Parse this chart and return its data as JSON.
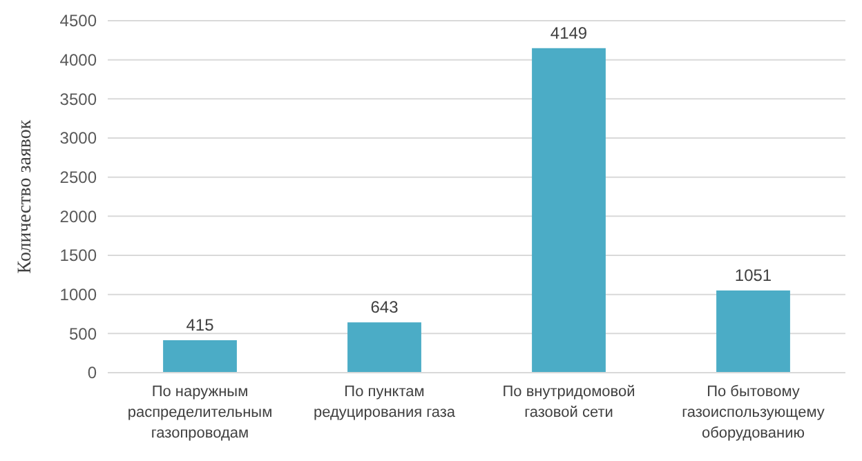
{
  "chart_data": {
    "type": "bar",
    "ylabel": "Количество заявок",
    "categories": [
      "По наружным распределительным газопроводам",
      "По пунктам редуцирования газа",
      "По внутридомовой газовой сети",
      "По бытовому газоиспользующему оборудованию"
    ],
    "values": [
      415,
      643,
      4149,
      1051
    ],
    "color": "#4bacc6",
    "data_labels": true,
    "ylim": [
      0,
      4500
    ],
    "yticks": [
      0,
      500,
      1000,
      1500,
      2000,
      2500,
      3000,
      3500,
      4000,
      4500
    ],
    "grid": "y"
  }
}
